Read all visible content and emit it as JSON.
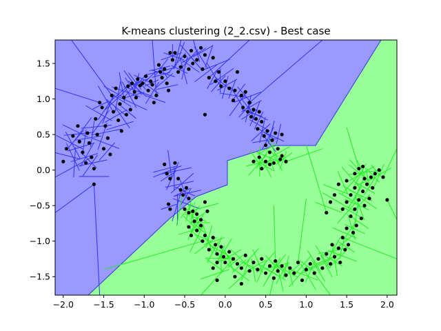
{
  "chart_data": {
    "type": "scatter",
    "title": "K-means clustering (2_2.csv) - Best case",
    "xlabel": "",
    "ylabel": "",
    "xlim": [
      -2.1,
      2.12
    ],
    "ylim": [
      -1.76,
      1.83
    ],
    "xticks": [
      -2.0,
      -1.5,
      -1.0,
      -0.5,
      0.0,
      0.5,
      1.0,
      1.5,
      2.0
    ],
    "xtick_labels": [
      "−2.0",
      "−1.5",
      "−1.0",
      "−0.5",
      "0.0",
      "0.5",
      "1.0",
      "1.5",
      "2.0"
    ],
    "yticks": [
      -1.5,
      -1.0,
      -0.5,
      0.0,
      0.5,
      1.0,
      1.5
    ],
    "ytick_labels": [
      "−1.5",
      "−1.0",
      "−0.5",
      "0.0",
      "0.5",
      "1.0",
      "1.5"
    ],
    "grid": false,
    "legend": "none",
    "regions": [
      {
        "cluster": "blue",
        "fill": "#9999ff",
        "edge": "#3333ee"
      },
      {
        "cluster": "green",
        "fill": "#99ff99",
        "edge": "#22ee22"
      }
    ],
    "point_color": "#000000",
    "points": [
      [
        -2.0,
        0.12
      ],
      [
        -1.96,
        0.3
      ],
      [
        -1.88,
        0.48
      ],
      [
        -1.82,
        0.62
      ],
      [
        -1.8,
        0.4
      ],
      [
        -1.76,
        0.25
      ],
      [
        -1.72,
        0.1
      ],
      [
        -1.7,
        0.52
      ],
      [
        -1.68,
        0.38
      ],
      [
        -1.65,
        0.18
      ],
      [
        -1.62,
        0.02
      ],
      [
        -1.6,
        0.72
      ],
      [
        -1.58,
        0.5
      ],
      [
        -1.55,
        0.95
      ],
      [
        -1.52,
        0.88
      ],
      [
        -1.5,
        0.3
      ],
      [
        -1.48,
        0.62
      ],
      [
        -1.45,
        0.45
      ],
      [
        -1.42,
        0.22
      ],
      [
        -1.4,
        1.05
      ],
      [
        -1.38,
        0.82
      ],
      [
        -1.35,
        1.15
      ],
      [
        -1.32,
        0.7
      ],
      [
        -1.3,
        0.93
      ],
      [
        -1.28,
        0.55
      ],
      [
        -1.25,
        1.02
      ],
      [
        -1.22,
        0.78
      ],
      [
        -1.2,
        1.18
      ],
      [
        -1.17,
        0.85
      ],
      [
        -1.15,
        1.22
      ],
      [
        -1.12,
        1.1
      ],
      [
        -1.1,
        1.02
      ],
      [
        -1.08,
        1.28
      ],
      [
        -1.05,
        1.19
      ],
      [
        -1.02,
        1.22
      ],
      [
        -0.98,
        1.32
      ],
      [
        -0.95,
        1.12
      ],
      [
        -0.92,
        1.25
      ],
      [
        -0.9,
        1.2
      ],
      [
        -0.88,
        0.95
      ],
      [
        -0.85,
        1.05
      ],
      [
        -0.82,
        1.48
      ],
      [
        -0.8,
        1.38
      ],
      [
        -0.78,
        1.3
      ],
      [
        -0.75,
        1.42
      ],
      [
        -0.72,
        1.22
      ],
      [
        -0.7,
        1.12
      ],
      [
        -0.68,
        1.65
      ],
      [
        -0.65,
        1.55
      ],
      [
        -0.62,
        1.65
      ],
      [
        -0.58,
        1.38
      ],
      [
        -0.55,
        1.45
      ],
      [
        -0.5,
        1.6
      ],
      [
        -0.45,
        1.42
      ],
      [
        -0.42,
        1.68
      ],
      [
        -0.4,
        1.5
      ],
      [
        -0.35,
        1.55
      ],
      [
        -0.3,
        1.72
      ],
      [
        -0.28,
        1.42
      ],
      [
        -0.25,
        1.62
      ],
      [
        -0.2,
        1.3
      ],
      [
        -0.15,
        1.58
      ],
      [
        -0.12,
        1.25
      ],
      [
        -0.08,
        1.38
      ],
      [
        -0.05,
        1.18
      ],
      [
        0.0,
        1.25
      ],
      [
        0.05,
        1.15
      ],
      [
        0.1,
        0.98
      ],
      [
        0.12,
        1.12
      ],
      [
        0.15,
        1.38
      ],
      [
        0.2,
        1.05
      ],
      [
        0.22,
        0.88
      ],
      [
        0.25,
        1.1
      ],
      [
        0.28,
        0.82
      ],
      [
        0.3,
        0.95
      ],
      [
        0.32,
        0.75
      ],
      [
        0.35,
        0.85
      ],
      [
        0.38,
        0.72
      ],
      [
        0.4,
        0.58
      ],
      [
        0.42,
        0.82
      ],
      [
        0.45,
        0.68
      ],
      [
        0.48,
        0.48
      ],
      [
        0.5,
        0.35
      ],
      [
        0.52,
        0.55
      ],
      [
        0.55,
        0.25
      ],
      [
        0.58,
        0.42
      ],
      [
        0.62,
        0.52
      ],
      [
        0.65,
        0.3
      ],
      [
        0.68,
        0.15
      ],
      [
        0.7,
        0.5
      ],
      [
        0.35,
        0.12
      ],
      [
        0.42,
        0.18
      ],
      [
        0.45,
        0.02
      ],
      [
        0.5,
        0.12
      ],
      [
        0.6,
        0.1
      ],
      [
        0.7,
        0.2
      ],
      [
        0.75,
        0.12
      ],
      [
        0.55,
        0.08
      ],
      [
        -0.75,
        0.08
      ],
      [
        -0.72,
        -0.05
      ],
      [
        -0.68,
        -0.12
      ],
      [
        -0.62,
        0.1
      ],
      [
        -0.58,
        -0.12
      ],
      [
        -0.55,
        -0.28
      ],
      [
        -0.52,
        -0.35
      ],
      [
        -0.48,
        -0.25
      ],
      [
        -0.45,
        -0.4
      ],
      [
        -0.7,
        -0.48
      ],
      [
        -0.68,
        -0.55
      ],
      [
        -0.5,
        -0.55
      ],
      [
        -0.45,
        -0.6
      ],
      [
        -0.4,
        -0.58
      ],
      [
        -0.35,
        -0.62
      ],
      [
        -0.3,
        -0.7
      ],
      [
        -0.25,
        -0.45
      ],
      [
        -0.22,
        -0.58
      ],
      [
        -0.45,
        -0.8
      ],
      [
        -0.42,
        -0.92
      ],
      [
        -0.38,
        -0.72
      ],
      [
        -0.35,
        -0.85
      ],
      [
        -0.3,
        -0.78
      ],
      [
        -0.28,
        -1.0
      ],
      [
        -0.25,
        -0.92
      ],
      [
        -0.2,
        -1.12
      ],
      [
        -0.15,
        -0.95
      ],
      [
        -0.12,
        -1.05
      ],
      [
        -0.1,
        -1.18
      ],
      [
        -0.05,
        -1.08
      ],
      [
        -0.02,
        -1.22
      ],
      [
        0.0,
        -1.3
      ],
      [
        0.05,
        -1.15
      ],
      [
        -0.15,
        -1.38
      ],
      [
        -0.1,
        -1.3
      ],
      [
        0.1,
        -1.25
      ],
      [
        0.15,
        -1.32
      ],
      [
        0.2,
        -1.38
      ],
      [
        0.25,
        -1.2
      ],
      [
        0.3,
        -1.42
      ],
      [
        0.35,
        -1.3
      ],
      [
        0.4,
        -1.4
      ],
      [
        0.45,
        -1.25
      ],
      [
        0.5,
        -1.45
      ],
      [
        0.55,
        -1.35
      ],
      [
        0.6,
        -1.52
      ],
      [
        0.62,
        -1.28
      ],
      [
        0.65,
        -1.42
      ],
      [
        0.7,
        -1.35
      ],
      [
        0.75,
        -1.48
      ],
      [
        0.8,
        -1.38
      ],
      [
        0.85,
        -1.45
      ],
      [
        0.9,
        -1.3
      ],
      [
        0.95,
        -1.55
      ],
      [
        1.0,
        -1.4
      ],
      [
        1.05,
        -1.32
      ],
      [
        1.1,
        -1.45
      ],
      [
        1.15,
        -1.25
      ],
      [
        1.2,
        -1.38
      ],
      [
        1.25,
        -1.18
      ],
      [
        1.3,
        -1.32
      ],
      [
        1.32,
        -1.05
      ],
      [
        1.35,
        -1.22
      ],
      [
        1.4,
        -1.1
      ],
      [
        1.42,
        -1.3
      ],
      [
        1.45,
        -0.95
      ],
      [
        1.48,
        -1.12
      ],
      [
        1.5,
        -0.82
      ],
      [
        1.52,
        -1.05
      ],
      [
        1.55,
        -0.65
      ],
      [
        1.58,
        -0.88
      ],
      [
        1.6,
        -0.55
      ],
      [
        1.62,
        -0.78
      ],
      [
        1.65,
        -0.42
      ],
      [
        1.68,
        -0.68
      ],
      [
        1.7,
        -0.3
      ],
      [
        1.72,
        -0.5
      ],
      [
        1.75,
        -0.2
      ],
      [
        1.78,
        -0.4
      ],
      [
        1.8,
        -0.1
      ],
      [
        1.82,
        -0.25
      ],
      [
        1.85,
        -0.05
      ],
      [
        1.9,
        0.0
      ],
      [
        1.95,
        -0.1
      ],
      [
        2.0,
        -0.42
      ],
      [
        1.6,
        -0.25
      ],
      [
        1.55,
        -0.35
      ],
      [
        1.5,
        -0.45
      ],
      [
        1.45,
        -0.55
      ],
      [
        1.4,
        -0.2
      ],
      [
        1.35,
        -0.35
      ],
      [
        1.3,
        -0.45
      ],
      [
        1.25,
        -0.6
      ],
      [
        1.5,
        -0.15
      ],
      [
        1.65,
        0.02
      ],
      [
        1.7,
        0.05
      ],
      [
        1.72,
        -0.12
      ],
      [
        1.6,
        -0.05
      ],
      [
        -1.62,
        -0.2
      ],
      [
        -0.25,
        0.78
      ],
      [
        0.12,
        -1.5
      ],
      [
        0.2,
        -1.6
      ],
      [
        -0.1,
        -1.55
      ]
    ]
  }
}
